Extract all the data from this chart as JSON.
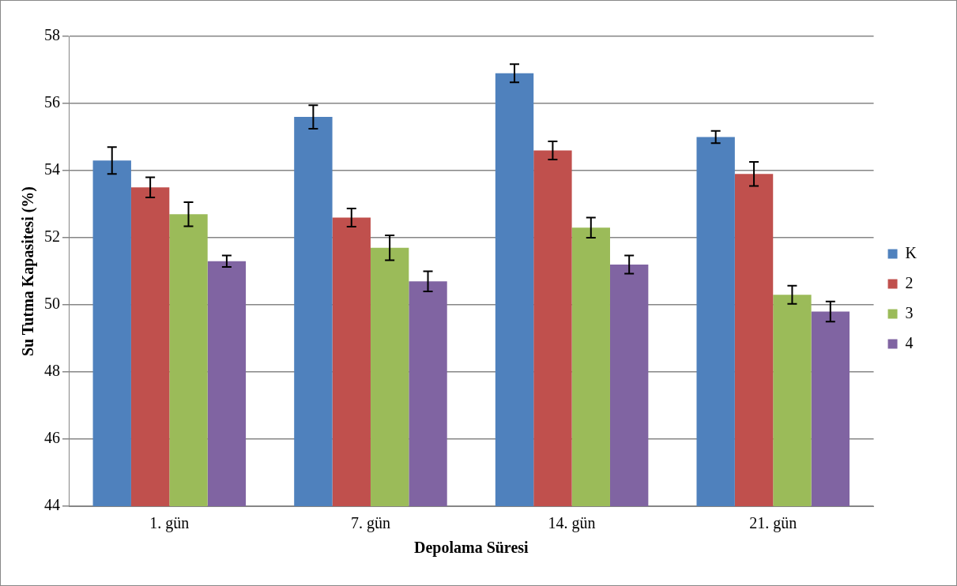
{
  "chart_data": {
    "type": "bar",
    "xlabel": "Depolama Süresi",
    "ylabel": "Su Tutma Kapasitesi (%)",
    "categories": [
      "1. gün",
      "7. gün",
      "14. gün",
      "21. gün"
    ],
    "series": [
      {
        "name": "K",
        "color": "#4f81bd",
        "values": [
          54.3,
          55.6,
          56.9,
          55.0
        ],
        "errors": [
          0.4,
          0.35,
          0.27,
          0.18
        ]
      },
      {
        "name": "2",
        "color": "#c0504d",
        "values": [
          53.5,
          52.6,
          54.6,
          53.9
        ],
        "errors": [
          0.3,
          0.27,
          0.27,
          0.36
        ]
      },
      {
        "name": "3",
        "color": "#9bbb59",
        "values": [
          52.7,
          51.7,
          52.3,
          50.3
        ],
        "errors": [
          0.36,
          0.37,
          0.3,
          0.27
        ]
      },
      {
        "name": "4",
        "color": "#8064a2",
        "values": [
          51.3,
          50.7,
          51.2,
          49.8
        ],
        "errors": [
          0.17,
          0.3,
          0.27,
          0.3
        ]
      }
    ],
    "ylim": [
      44,
      58
    ],
    "yticks": [
      44,
      46,
      48,
      50,
      52,
      54,
      56,
      58
    ],
    "grid": "y",
    "legend": "right"
  }
}
